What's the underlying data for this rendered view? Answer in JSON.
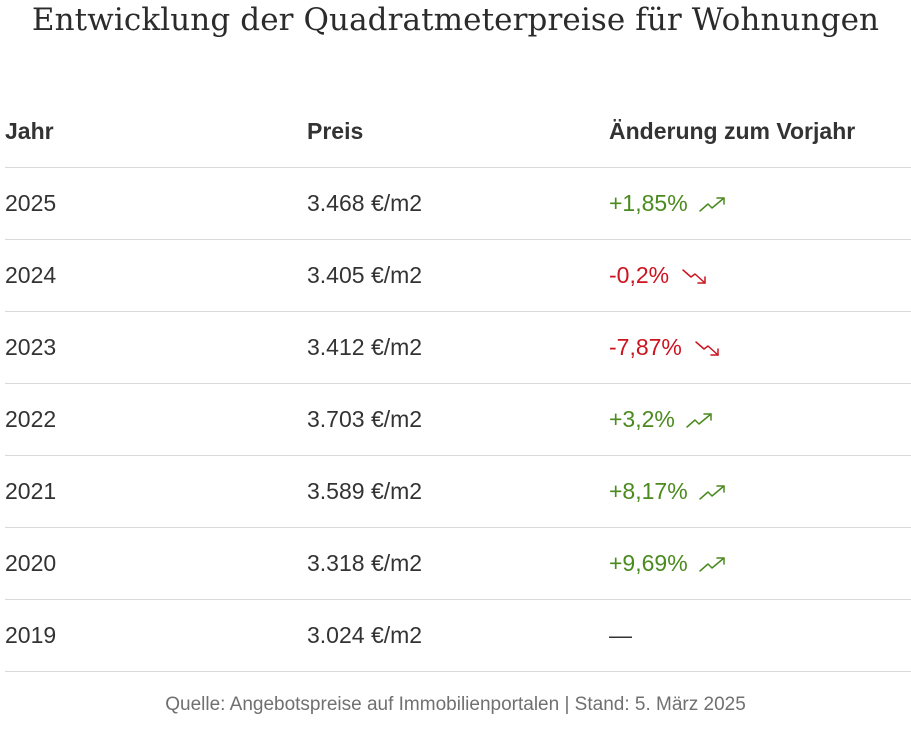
{
  "title": "Entwicklung der Quadratmeterpreise für Wohnungen",
  "table": {
    "headers": {
      "year": "Jahr",
      "price": "Preis",
      "change": "Änderung zum Vorjahr"
    },
    "rows": [
      {
        "year": "2025",
        "price": "3.468 €/m2",
        "change": "+1,85%",
        "trend": "up",
        "trend_icon": "trend-up-icon"
      },
      {
        "year": "2024",
        "price": "3.405 €/m2",
        "change": "-0,2%",
        "trend": "down",
        "trend_icon": "trend-down-icon"
      },
      {
        "year": "2023",
        "price": "3.412 €/m2",
        "change": "-7,87%",
        "trend": "down",
        "trend_icon": "trend-down-icon"
      },
      {
        "year": "2022",
        "price": "3.703 €/m2",
        "change": "+3,2%",
        "trend": "up",
        "trend_icon": "trend-up-icon"
      },
      {
        "year": "2021",
        "price": "3.589 €/m2",
        "change": "+8,17%",
        "trend": "up",
        "trend_icon": "trend-up-icon"
      },
      {
        "year": "2020",
        "price": "3.318 €/m2",
        "change": "+9,69%",
        "trend": "up",
        "trend_icon": "trend-up-icon"
      },
      {
        "year": "2019",
        "price": "3.024 €/m2",
        "change": "—",
        "trend": "none",
        "trend_icon": ""
      }
    ]
  },
  "source": "Quelle: Angebotspreise auf Immobilienportalen | Stand: 5. März 2025",
  "colors": {
    "up": "#4a8a1e",
    "down": "#cc1420",
    "text": "#333333",
    "divider": "#d9d9d9",
    "source_text": "#707070"
  }
}
